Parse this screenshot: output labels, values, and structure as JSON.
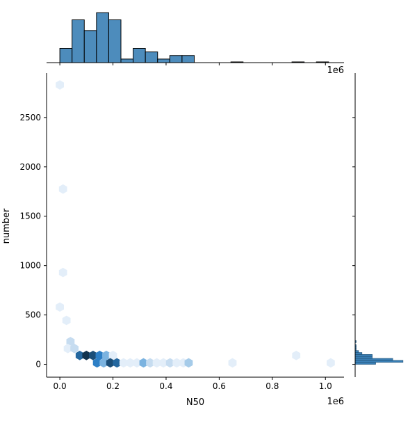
{
  "chart_data": {
    "type": "jointplot-hexbin",
    "xlabel": "N50",
    "ylabel": "number",
    "x_offset_label": "1e6",
    "top_offset_label": "1e6",
    "xlim": [
      -0.05,
      1.07
    ],
    "ylim": [
      -130,
      2950
    ],
    "x_ticks": [
      0.0,
      0.2,
      0.4,
      0.6,
      0.8,
      1.0
    ],
    "x_tick_labels": [
      "0.0",
      "0.2",
      "0.4",
      "0.6",
      "0.8",
      "1.0"
    ],
    "y_ticks": [
      0,
      500,
      1000,
      1500,
      2000,
      2500
    ],
    "y_tick_labels": [
      "0",
      "500",
      "1000",
      "1500",
      "2000",
      "2500"
    ],
    "grid": false,
    "accent_color": "#3a7fb5",
    "hexbins": [
      {
        "x": 0.0,
        "y": 2830,
        "count": 1
      },
      {
        "x": 0.012,
        "y": 1775,
        "count": 1
      },
      {
        "x": 0.012,
        "y": 930,
        "count": 1
      },
      {
        "x": 0.0,
        "y": 580,
        "count": 1
      },
      {
        "x": 0.025,
        "y": 445,
        "count": 1
      },
      {
        "x": 0.04,
        "y": 230,
        "count": 2
      },
      {
        "x": 0.03,
        "y": 160,
        "count": 1
      },
      {
        "x": 0.055,
        "y": 160,
        "count": 2
      },
      {
        "x": 0.075,
        "y": 90,
        "count": 7
      },
      {
        "x": 0.1,
        "y": 90,
        "count": 9
      },
      {
        "x": 0.125,
        "y": 90,
        "count": 8
      },
      {
        "x": 0.15,
        "y": 90,
        "count": 6
      },
      {
        "x": 0.175,
        "y": 90,
        "count": 4
      },
      {
        "x": 0.2,
        "y": 90,
        "count": 1
      },
      {
        "x": 0.14,
        "y": 15,
        "count": 6
      },
      {
        "x": 0.165,
        "y": 15,
        "count": 4
      },
      {
        "x": 0.19,
        "y": 15,
        "count": 8
      },
      {
        "x": 0.215,
        "y": 15,
        "count": 7
      },
      {
        "x": 0.24,
        "y": 15,
        "count": 1
      },
      {
        "x": 0.265,
        "y": 15,
        "count": 1
      },
      {
        "x": 0.29,
        "y": 15,
        "count": 1
      },
      {
        "x": 0.315,
        "y": 15,
        "count": 4
      },
      {
        "x": 0.34,
        "y": 15,
        "count": 2
      },
      {
        "x": 0.365,
        "y": 15,
        "count": 1
      },
      {
        "x": 0.39,
        "y": 15,
        "count": 1
      },
      {
        "x": 0.415,
        "y": 15,
        "count": 2
      },
      {
        "x": 0.44,
        "y": 15,
        "count": 1
      },
      {
        "x": 0.465,
        "y": 15,
        "count": 1
      },
      {
        "x": 0.485,
        "y": 15,
        "count": 3
      },
      {
        "x": 0.65,
        "y": 15,
        "count": 1
      },
      {
        "x": 0.89,
        "y": 90,
        "count": 1
      },
      {
        "x": 1.02,
        "y": 15,
        "count": 1
      }
    ],
    "hex_colors_by_count": [
      "#e3eef9",
      "#c6dcf0",
      "#a5cbe9",
      "#7bb3e0",
      "#4f98d6",
      "#2d7fc6",
      "#24679f",
      "#1b4e78",
      "#11334e",
      "#070f16"
    ],
    "top_histogram": {
      "bin_edges": [
        0.0,
        0.046,
        0.092,
        0.138,
        0.184,
        0.23,
        0.276,
        0.322,
        0.368,
        0.414,
        0.46,
        0.506,
        0.552,
        0.598,
        0.644,
        0.69,
        0.736,
        0.782,
        0.828,
        0.874,
        0.92,
        0.966,
        1.012,
        1.058
      ],
      "counts": [
        4,
        12,
        9,
        14,
        12,
        1,
        4,
        3,
        1,
        2,
        2,
        0,
        0,
        0,
        0.2,
        0,
        0,
        0,
        0,
        0.2,
        0,
        0.2,
        0
      ],
      "max_count": 14
    },
    "right_histogram": {
      "bins": [
        {
          "y0": 0,
          "y1": 20,
          "count": 6
        },
        {
          "y0": 20,
          "y1": 40,
          "count": 14
        },
        {
          "y0": 40,
          "y1": 60,
          "count": 11
        },
        {
          "y0": 60,
          "y1": 80,
          "count": 5
        },
        {
          "y0": 80,
          "y1": 100,
          "count": 5
        },
        {
          "y0": 100,
          "y1": 120,
          "count": 2
        },
        {
          "y0": 120,
          "y1": 140,
          "count": 1
        },
        {
          "y0": 140,
          "y1": 160,
          "count": 0.3
        },
        {
          "y0": 160,
          "y1": 180,
          "count": 0.3
        },
        {
          "y0": 180,
          "y1": 200,
          "count": 0.3
        },
        {
          "y0": 220,
          "y1": 240,
          "count": 0.3
        }
      ],
      "max_count": 14
    }
  }
}
